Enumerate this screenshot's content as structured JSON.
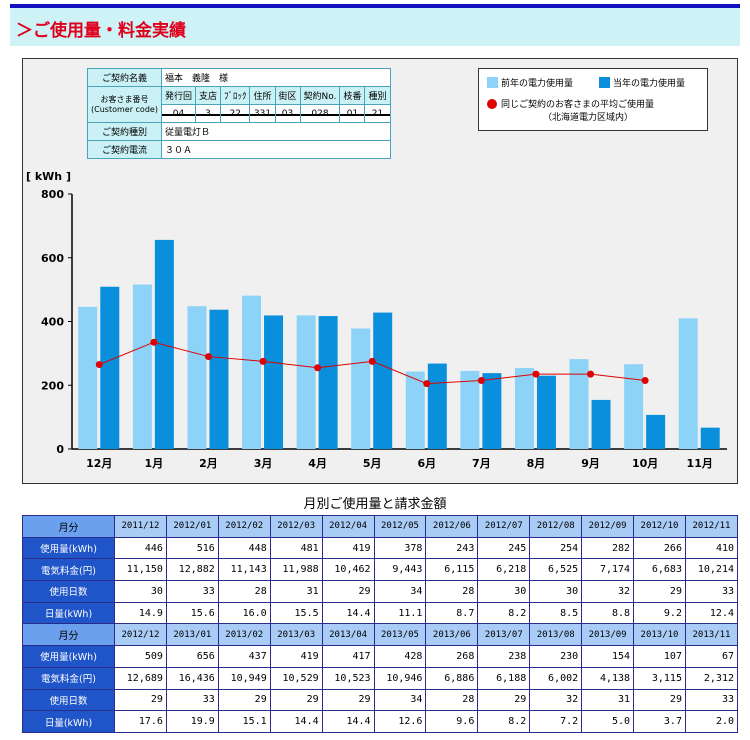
{
  "page": {
    "title": "＞ご使用量・料金実績"
  },
  "contract": {
    "name_label": "ご契約名義",
    "name_value": "福本　義隆　様",
    "customer_label": "お客さま番号",
    "customer_label_en": "(Customer code)",
    "customer_cols": [
      "発行回",
      "支店",
      "ﾌﾞﾛｯｸ",
      "住所",
      "街区",
      "契約No.",
      "枝番",
      "種別"
    ],
    "customer_codes": [
      "04",
      "3",
      "22",
      "331",
      "03",
      "028",
      "01",
      "21"
    ],
    "type_label": "ご契約種別",
    "type_value": "従量電灯Ｂ",
    "current_label": "ご契約電流",
    "current_value": "３０Ａ"
  },
  "legend": {
    "prev_year": "前年の電力使用量",
    "this_year": "当年の電力使用量",
    "average_line1": "同じご契約のお客さまの平均ご使用量",
    "average_line2": "（北海道電力区域内）"
  },
  "colors": {
    "prev": "#8dd2f7",
    "curr": "#0a8fdc",
    "avg": "#e00000"
  },
  "chart_data": {
    "type": "bar",
    "ylabel": "[ kWh ]",
    "ylim": [
      0,
      800
    ],
    "yticks": [
      0,
      200,
      400,
      600,
      800
    ],
    "categories": [
      "12月",
      "1月",
      "2月",
      "3月",
      "4月",
      "5月",
      "6月",
      "7月",
      "8月",
      "9月",
      "10月",
      "11月"
    ],
    "series": [
      {
        "name": "前年の電力使用量",
        "values": [
          446,
          516,
          448,
          481,
          419,
          378,
          243,
          245,
          254,
          282,
          266,
          410
        ]
      },
      {
        "name": "当年の電力使用量",
        "values": [
          509,
          656,
          437,
          419,
          417,
          428,
          268,
          238,
          230,
          154,
          107,
          67
        ]
      }
    ],
    "average": {
      "name": "同じご契約のお客さまの平均ご使用量",
      "values": [
        265,
        335,
        290,
        275,
        255,
        275,
        205,
        215,
        235,
        235,
        215,
        null
      ]
    }
  },
  "table": {
    "title": "月別ご使用量と請求金額",
    "row_labels": [
      "月分",
      "使用量(kWh)",
      "電気料金(円)",
      "使用日数",
      "日量(kWh)"
    ],
    "prev": {
      "months": [
        "2011/12",
        "2012/01",
        "2012/02",
        "2012/03",
        "2012/04",
        "2012/05",
        "2012/06",
        "2012/07",
        "2012/08",
        "2012/09",
        "2012/10",
        "2012/11"
      ],
      "usage": [
        "446",
        "516",
        "448",
        "481",
        "419",
        "378",
        "243",
        "245",
        "254",
        "282",
        "266",
        "410"
      ],
      "charge": [
        "11,150",
        "12,882",
        "11,143",
        "11,988",
        "10,462",
        "9,443",
        "6,115",
        "6,218",
        "6,525",
        "7,174",
        "6,683",
        "10,214"
      ],
      "days": [
        "30",
        "33",
        "28",
        "31",
        "29",
        "34",
        "28",
        "30",
        "30",
        "32",
        "29",
        "33"
      ],
      "daily": [
        "14.9",
        "15.6",
        "16.0",
        "15.5",
        "14.4",
        "11.1",
        "8.7",
        "8.2",
        "8.5",
        "8.8",
        "9.2",
        "12.4"
      ]
    },
    "curr": {
      "months": [
        "2012/12",
        "2013/01",
        "2013/02",
        "2013/03",
        "2013/04",
        "2013/05",
        "2013/06",
        "2013/07",
        "2013/08",
        "2013/09",
        "2013/10",
        "2013/11"
      ],
      "usage": [
        "509",
        "656",
        "437",
        "419",
        "417",
        "428",
        "268",
        "238",
        "230",
        "154",
        "107",
        "67"
      ],
      "charge": [
        "12,689",
        "16,436",
        "10,949",
        "10,529",
        "10,523",
        "10,946",
        "6,886",
        "6,188",
        "6,002",
        "4,138",
        "3,115",
        "2,312"
      ],
      "days": [
        "29",
        "33",
        "29",
        "29",
        "29",
        "34",
        "28",
        "29",
        "32",
        "31",
        "29",
        "33"
      ],
      "daily": [
        "17.6",
        "19.9",
        "15.1",
        "14.4",
        "14.4",
        "12.6",
        "9.6",
        "8.2",
        "7.2",
        "5.0",
        "3.7",
        "2.0"
      ]
    }
  }
}
